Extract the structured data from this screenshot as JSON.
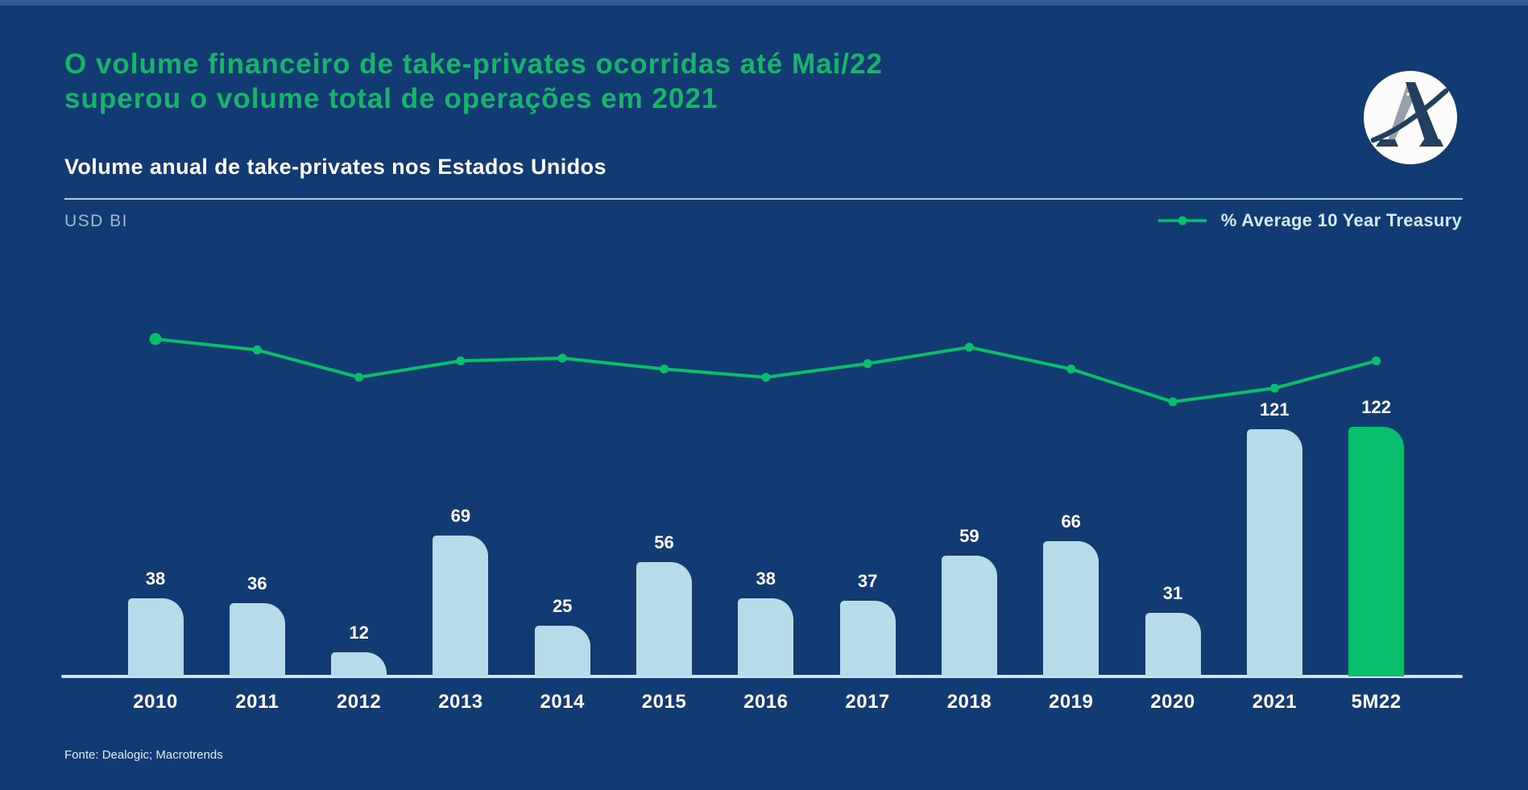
{
  "header": {
    "title_line1": "O volume financeiro de take-privates ocorridas até Mai/22",
    "title_line2": "superou o volume total de operações em 2021",
    "subtitle": "Volume anual de take-privates nos Estados Unidos"
  },
  "chart": {
    "unit_label": "USD BI",
    "legend_label": "% Average 10 Year Treasury"
  },
  "footer": {
    "source": "Fonte: Dealogic; Macrotrends"
  },
  "colors": {
    "background": "#123a73",
    "title_green": "#17b56a",
    "accent_green": "#0abf6b",
    "bar_light_blue": "#b7dbe8",
    "axis_line": "#cfe3f1",
    "legend_text": "#d6e9f7",
    "muted_blue": "#9fbbd3",
    "label_white": "#ffffff"
  },
  "chart_data": {
    "type": "bar",
    "title": "Volume anual de take-privates nos Estados Unidos",
    "ylabel": "USD BI",
    "categories": [
      "2010",
      "2011",
      "2012",
      "2013",
      "2014",
      "2015",
      "2016",
      "2017",
      "2018",
      "2019",
      "2020",
      "2021",
      "5M22"
    ],
    "series": [
      {
        "name": "Volume anual de take-privates (USD BI)",
        "type": "bar",
        "values": [
          38,
          36,
          12,
          69,
          25,
          56,
          38,
          37,
          59,
          66,
          31,
          121,
          122
        ]
      },
      {
        "name": "% Average 10 Year Treasury",
        "type": "line",
        "values": [
          3.2,
          2.8,
          1.8,
          2.4,
          2.5,
          2.1,
          1.8,
          2.3,
          2.9,
          2.1,
          0.9,
          1.4,
          2.4
        ]
      }
    ],
    "highlight_category": "5M22",
    "bar_color": "#b7dbe8",
    "highlight_bar_color": "#0abf6b",
    "line_color": "#0abf6b",
    "value_labels_shown": true,
    "gridlines": false,
    "legend_position": "top-right"
  }
}
